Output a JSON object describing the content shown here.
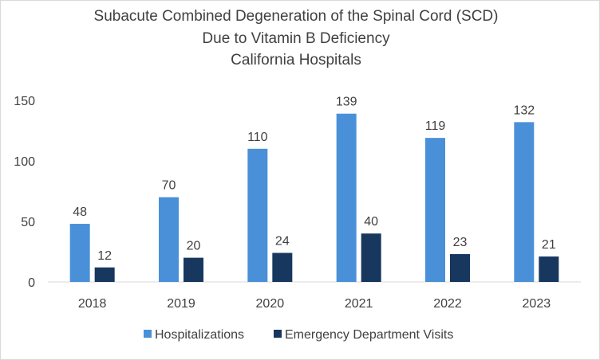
{
  "chart_data": {
    "type": "bar",
    "title": [
      "Subacute Combined Degeneration of the Spinal Cord (SCD)",
      "Due to Vitamin B Deficiency",
      "California Hospitals"
    ],
    "categories": [
      "2018",
      "2019",
      "2020",
      "2021",
      "2022",
      "2023"
    ],
    "series": [
      {
        "name": "Hospitalizations",
        "color": "#4a90d9",
        "values": [
          48,
          70,
          110,
          139,
          119,
          132
        ]
      },
      {
        "name": "Emergency Department Visits",
        "color": "#17375e",
        "values": [
          12,
          20,
          24,
          40,
          23,
          21
        ]
      }
    ],
    "yticks": [
      0,
      50,
      100,
      150
    ],
    "ylim": [
      0,
      150
    ],
    "xlabel": "",
    "ylabel": "",
    "legend_position": "bottom",
    "grid": false
  }
}
